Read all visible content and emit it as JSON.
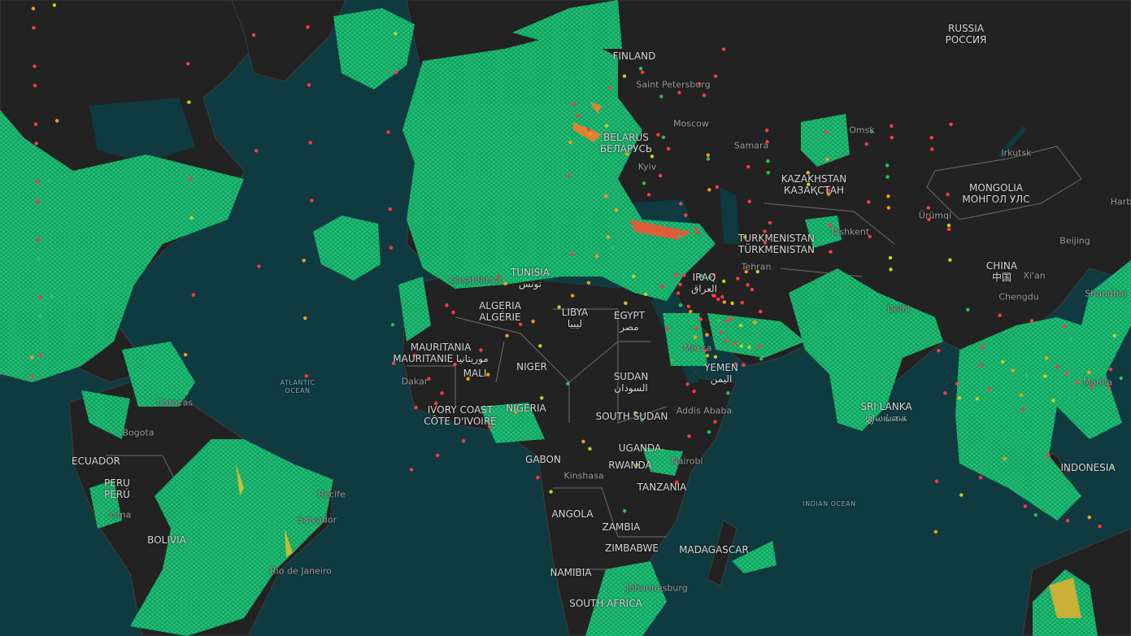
{
  "map": {
    "colors": {
      "ocean": "#0f3a40",
      "land": "#222222",
      "border": "#6d6d6d",
      "coverage": "#1fc274",
      "dot_red": "#ff3b4a",
      "dot_orange": "#ff9a1f",
      "dot_yellow": "#c8d020",
      "dot_green": "#29c25a"
    },
    "countries": [
      {
        "name": "RUSSIA",
        "alt": "РОССИЯ"
      },
      {
        "name": "FINLAND",
        "alt": ""
      },
      {
        "name": "BELARUS",
        "alt": "БЕЛАРУСЬ"
      },
      {
        "name": "KAZAKHSTAN",
        "alt": "КАЗАҚСТАН"
      },
      {
        "name": "MONGOLIA",
        "alt": "МОНГОЛ УЛС"
      },
      {
        "name": "TURKMENISTAN",
        "alt": "TÜRKMENISTAN"
      },
      {
        "name": "CHINA",
        "alt": "中国"
      },
      {
        "name": "ALGERIA",
        "alt": "ALGÉRIE"
      },
      {
        "name": "LIBYA",
        "alt": "ليبيا"
      },
      {
        "name": "EGYPT",
        "alt": "مصر"
      },
      {
        "name": "MAURITANIA",
        "alt": "MAURITANIE موريتانيا"
      },
      {
        "name": "MALI",
        "alt": ""
      },
      {
        "name": "NIGER",
        "alt": ""
      },
      {
        "name": "SUDAN",
        "alt": "السودان"
      },
      {
        "name": "YEMEN",
        "alt": "اليمن"
      },
      {
        "name": "IVORY COAST",
        "alt": "CÔTE D'IVOIRE"
      },
      {
        "name": "NIGERIA",
        "alt": ""
      },
      {
        "name": "SOUTH SUDAN",
        "alt": ""
      },
      {
        "name": "GABON",
        "alt": ""
      },
      {
        "name": "UGANDA",
        "alt": ""
      },
      {
        "name": "RWANDA",
        "alt": ""
      },
      {
        "name": "TANZANIA",
        "alt": ""
      },
      {
        "name": "ANGOLA",
        "alt": ""
      },
      {
        "name": "ZAMBIA",
        "alt": ""
      },
      {
        "name": "ZIMBABWE",
        "alt": ""
      },
      {
        "name": "MADAGASCAR",
        "alt": ""
      },
      {
        "name": "NAMIBIA",
        "alt": ""
      },
      {
        "name": "SOUTH AFRICA",
        "alt": ""
      },
      {
        "name": "ECUADOR",
        "alt": ""
      },
      {
        "name": "PERU",
        "alt": "PERÚ"
      },
      {
        "name": "BOLIVIA",
        "alt": ""
      },
      {
        "name": "SRI LANKA",
        "alt": "இலங்கை"
      },
      {
        "name": "INDONESIA",
        "alt": ""
      },
      {
        "name": "TUNISIA",
        "alt": "تونس"
      },
      {
        "name": "IRAQ",
        "alt": "العراق"
      }
    ],
    "cities": [
      "Saint Petersburg",
      "Moscow",
      "Samara",
      "Kyiv",
      "Omsk",
      "Irkutsk",
      "Ürümqi",
      "Tashkent",
      "Tehran",
      "Beijing",
      "Xi'an",
      "Chengdu",
      "Shanghai",
      "Harbin",
      "Casablanca",
      "Dakar",
      "Addis Ababa",
      "Mecca",
      "Kinshasa",
      "Nairobi",
      "Johannesburg",
      "Bogota",
      "Caracas",
      "Lima",
      "Recife",
      "Salvador",
      "Rio de Janeiro",
      "Delhi",
      "Manila"
    ],
    "oceans": [
      {
        "name": "ATLANTIC",
        "alt": "OCEAN"
      },
      {
        "name": "INDIAN OCEAN",
        "alt": ""
      }
    ]
  }
}
